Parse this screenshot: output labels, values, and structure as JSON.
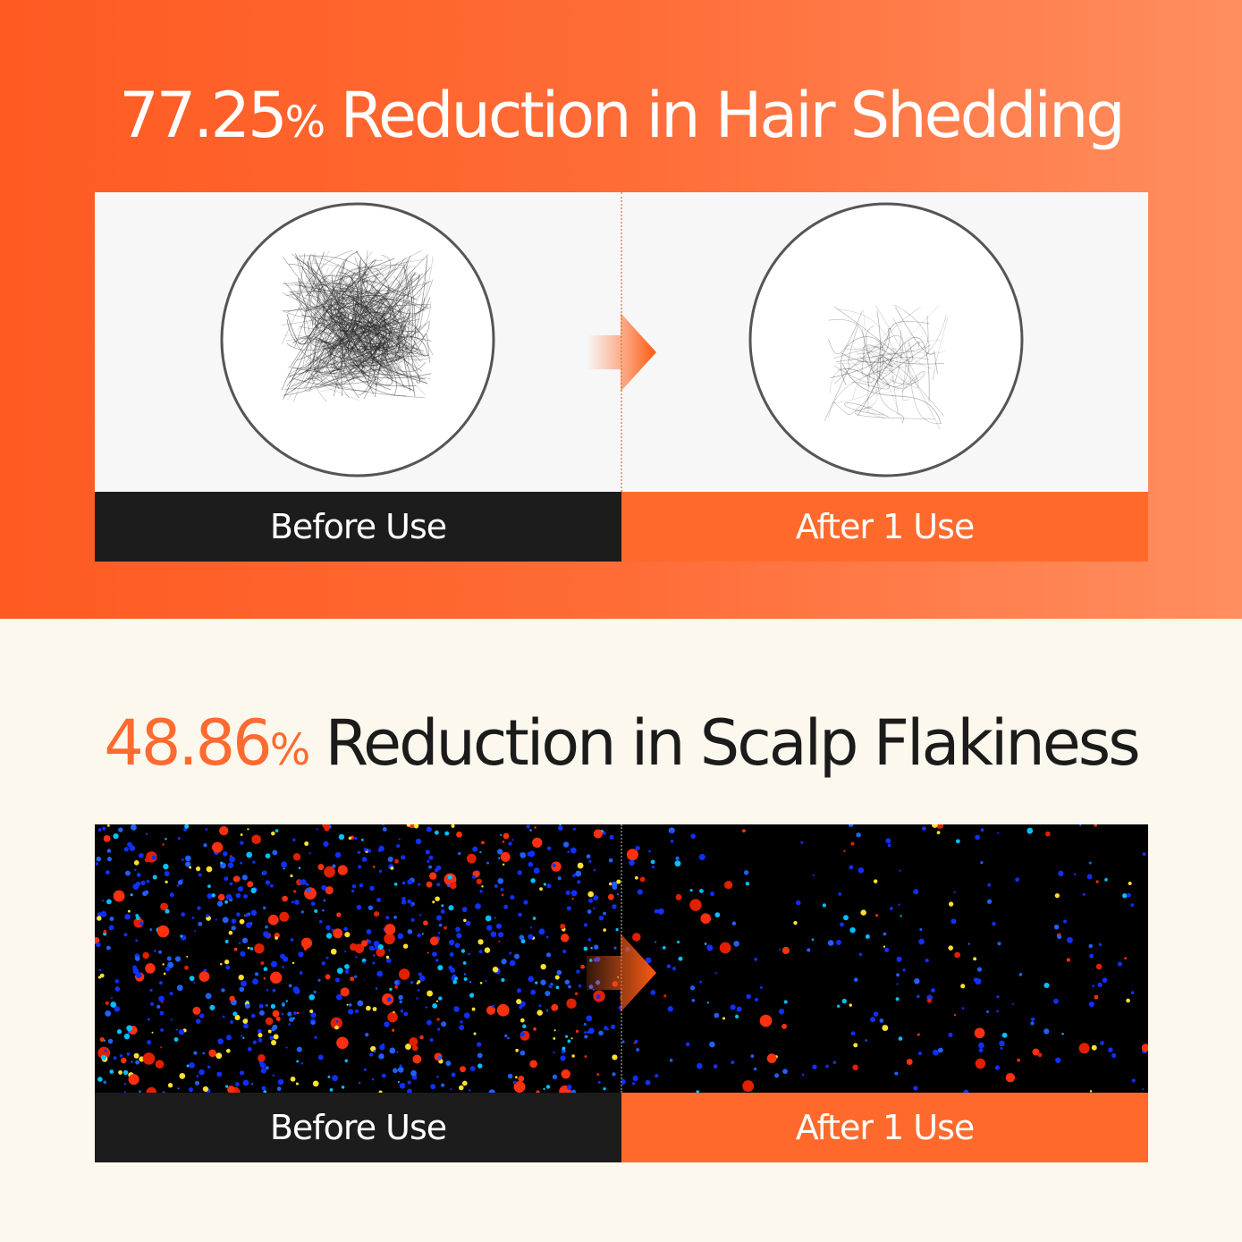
{
  "shedding": {
    "percent": "77.25",
    "pct_sign": "%",
    "text": " Reduction in Hair Shedding",
    "before_label": "Before Use",
    "after_label": "After 1 Use"
  },
  "flakiness": {
    "percent": "48.86",
    "pct_sign": "%",
    "text": " Reduction in Scalp Flakiness",
    "before_label": "Before Use",
    "after_label": "After 1 Use"
  },
  "colors": {
    "accent": "#ff6a2c",
    "dark": "#1c1c1c",
    "cream": "#fcf8ee"
  }
}
